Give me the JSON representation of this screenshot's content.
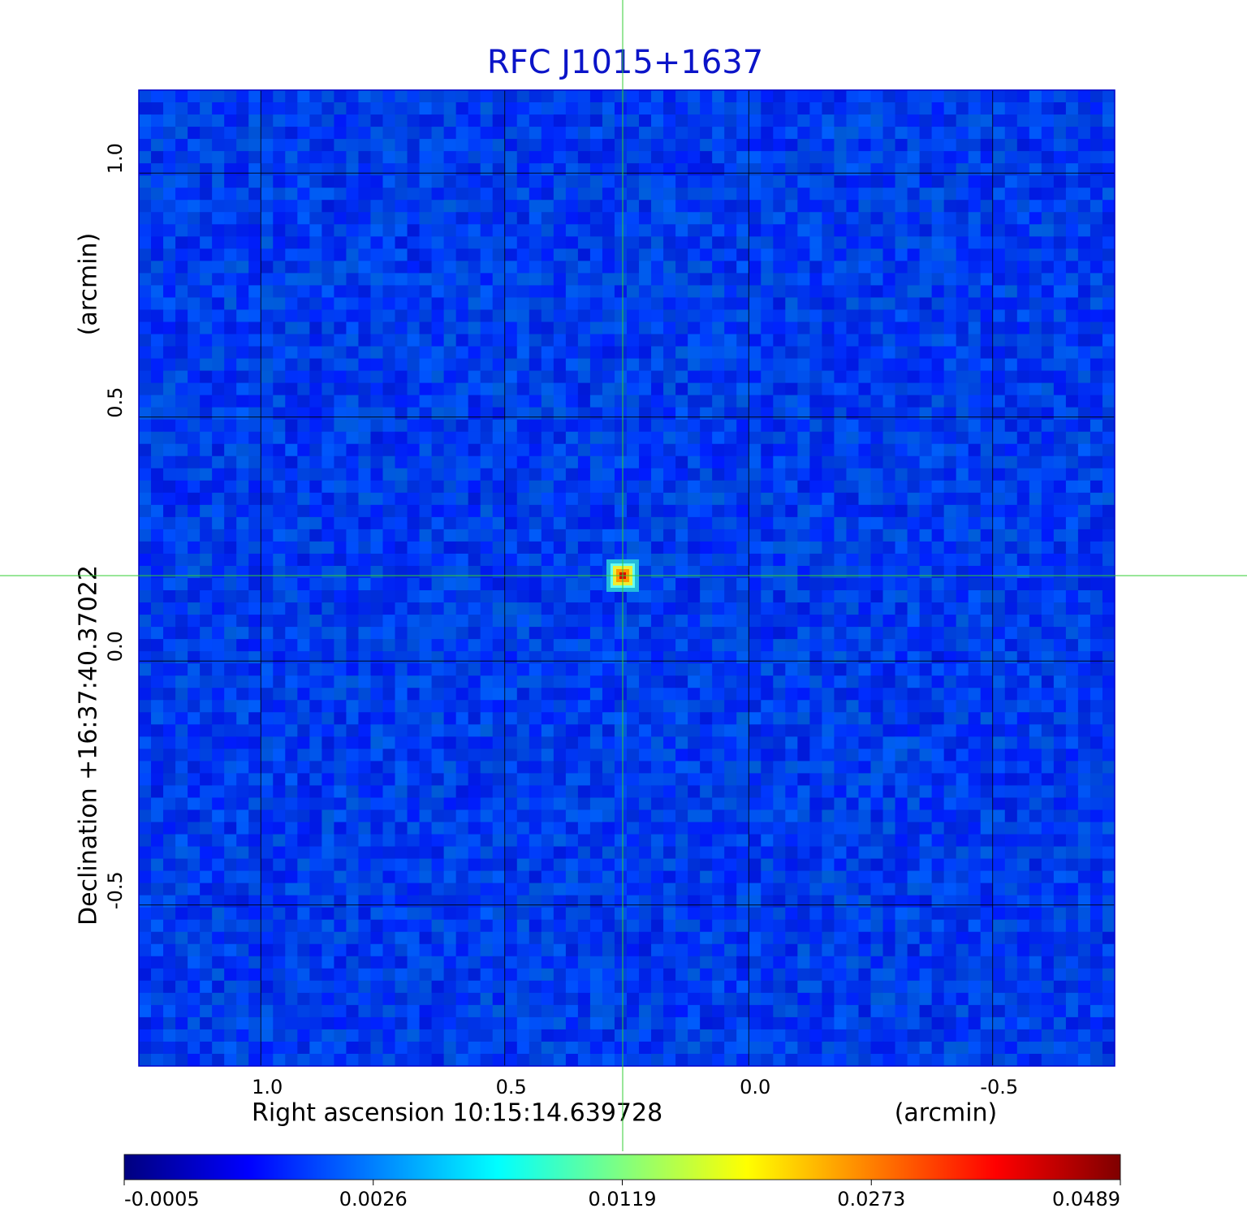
{
  "chart_data": {
    "type": "image",
    "title": "RFC J1015+1637",
    "xlabel": "Right ascension  10:15:14.639728",
    "xunit": "(arcmin)",
    "ylabel": "Declination  +16:37:40.37022",
    "yunit": "(arcmin)",
    "xlim": [
      1.25,
      -0.75
    ],
    "ylim": [
      -0.83,
      1.17
    ],
    "xticks": [
      {
        "value": 1,
        "label": "1.0"
      },
      0.5,
      {
        "value": 0,
        "label": "0.0"
      },
      -0.5
    ],
    "yticks": [
      {
        "value": -0.5,
        "label": "-0.5"
      },
      {
        "value": 0,
        "label": "0.0"
      },
      0.5,
      {
        "value": 1,
        "label": "1.0"
      }
    ],
    "grid": true,
    "colormap": "jet",
    "colorbar_ticks": [
      -0.0005,
      0.0026,
      0.0119,
      0.0273,
      0.0489
    ]
  }
}
